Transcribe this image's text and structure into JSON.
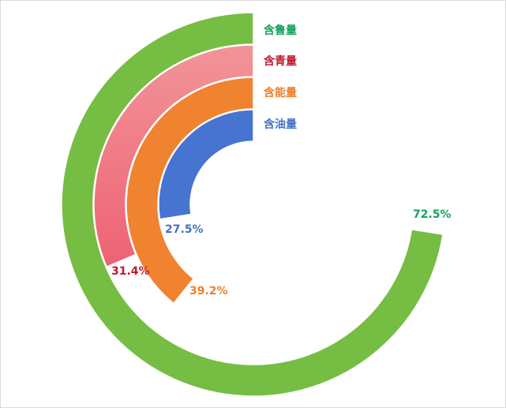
{
  "chart_data": {
    "type": "radial-bar",
    "title": "",
    "series": [
      {
        "name": "含鲁量",
        "value": 72.5,
        "value_label": "72.5%",
        "color": "#76BD43",
        "label_color": "#16A05D"
      },
      {
        "name": "含青量",
        "value": 31.4,
        "value_label": "31.4%",
        "color": "#EE6275",
        "color_light": "#F29499",
        "label_color": "#C0192B"
      },
      {
        "name": "含能量",
        "value": 39.2,
        "value_label": "39.2%",
        "color": "#F08330",
        "label_color": "#EE7F27"
      },
      {
        "name": "含油量",
        "value": 27.5,
        "value_label": "27.5%",
        "color": "#4674D0",
        "label_color": "#4472C4"
      }
    ],
    "max": 100,
    "start": "top",
    "direction": "counterclockwise",
    "legend": "right of ring starts"
  }
}
